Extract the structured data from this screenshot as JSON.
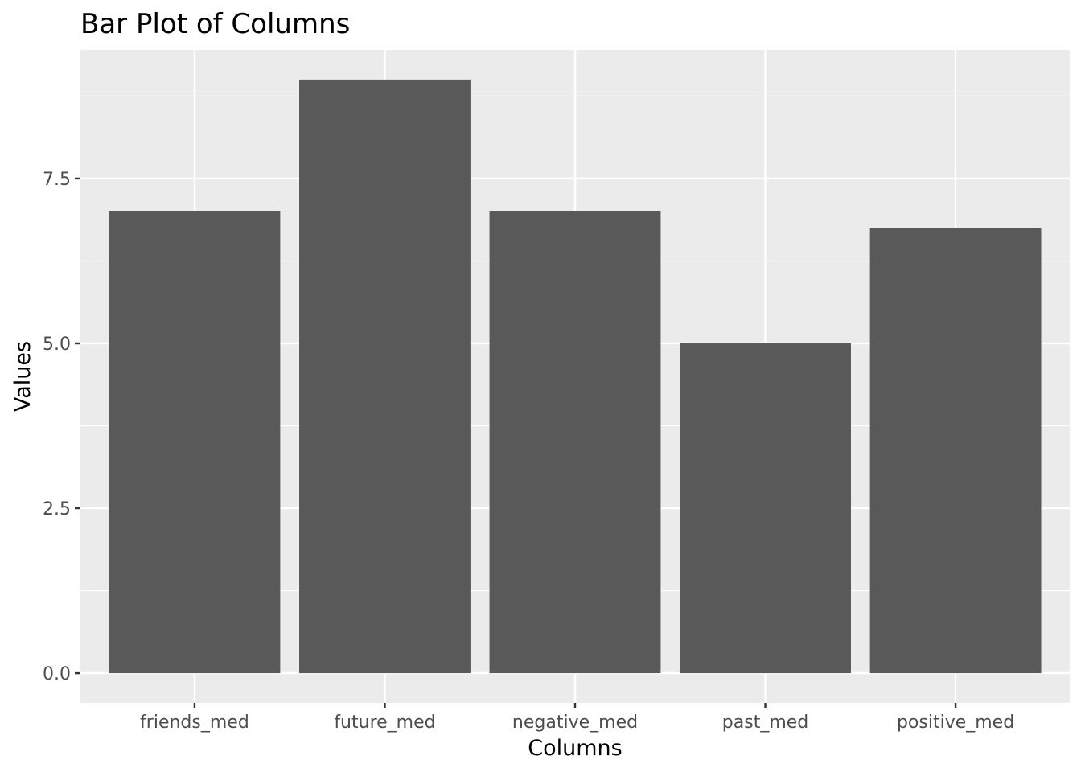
{
  "chart_data": {
    "type": "bar",
    "title": "Bar Plot of Columns",
    "xlabel": "Columns",
    "ylabel": "Values",
    "categories": [
      "friends_med",
      "future_med",
      "negative_med",
      "past_med",
      "positive_med"
    ],
    "values": [
      7.0,
      9.0,
      7.0,
      5.0,
      6.75
    ],
    "ylim": [
      -0.45,
      9.45
    ],
    "yticks": [
      0.0,
      2.5,
      5.0,
      7.5
    ],
    "ytick_labels": [
      "0.0",
      "2.5",
      "5.0",
      "7.5"
    ],
    "grid": true,
    "legend": "none",
    "colors": {
      "panel": "#ebebeb",
      "grid": "#ffffff",
      "bar": "#595959",
      "tick": "#333333"
    }
  }
}
